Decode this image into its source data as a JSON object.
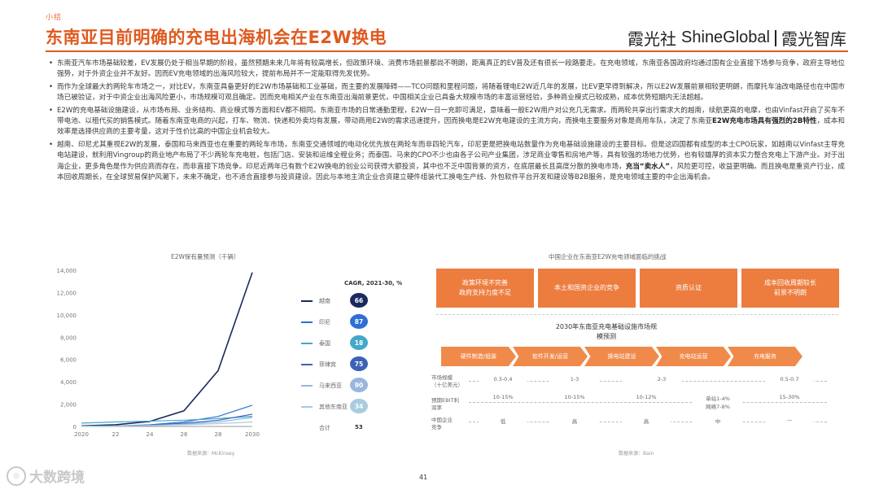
{
  "header": {
    "tag": "小结",
    "title": "东南亚目前明确的充电出海机会在E2W换电",
    "logo_cn": "霞光社",
    "logo_en": "ShineGlobal",
    "logo_right": "霞光智库"
  },
  "bullets": [
    "东南亚汽车市场基础较差，EV发展仍处于相当早期的阶段，虽然预期未来几年将有较高增长，但政策环境、消费市场前景都尚不明朗，距离真正的EV普及还有很长一段路要走。在充电领域，东南亚各国政府均通过国有企业直接下场参与竞争，政府主导地位强势，对于外资企业并不友好。因而EV充电领域的出海风险较大，提前布局并不一定能取得先发优势。",
    "而作为全球最大的两轮车市场之一，对比EV，东南亚具备更好的E2W市场基础和工业基础，而主要的发展障碍——TCO问题和里程问题，将随着锂电E2W近几年的发展，比EV更早得到解决，所以E2W发展前景相较更明朗，而摩托车油改电路径也在中国市场已被验证，对于中资企业出海风险更小，市场规模可观且确定。因而充电相关产业在东南亚出海前景更优，中国相关企业已具备大规模市场的丰富运营经验，多种商业模式已较成熟，成本优势短期内无法超越。",
    "E2W的充电基础设施建设，从市场布局、业务结构、商业模式等方面和EV都不相同。东南亚市场的日常通勤里程，E2W一日一充即可满足，意味着一般E2W用户对公充几无需求。而两轮共享出行需求大的越南，续航更高的电摩，也由Vinfast开启了买车不带电池、以租代买的销售模式。随着东南亚电商的兴起，打车、物流、快递和外卖均有发展，带动商用E2W的需求迅速提升，因而换电是E2W充电建设的主流方向，而换电主要服务对象是商用车队，决定了东南亚E2W充电市场具有强烈的2B特性，成本和效率是选择供应商的主要考量，这对于性价比高的中国企业机会较大。",
    "越南、印尼尤其重视E2W的发展，泰国和马来西亚也在重要的两轮车市场，东南亚交通领域的电动化优先放在两轮车而非四轮汽车，印尼更是把换电站数量作为充电基础设施建设的主要目标。但是这四国都有成型的本土CPO玩家，如越南以Vinfast主导充电站建设，就利用Vingroup的商业地产布局了不少两轮车充电桩，包括门店、安装和运维全程业务；而泰国、马来的CPO不少也由各子公司产业集团，涉足商业零售和房地产等，具有较强的场地力优势，也有较雄厚的资本实力整合充电上下游产业。对于出海企业，更多角色是作为供应商而存在，而非直接下场竞争。印尼近两年已有数个E2W换电的创业公司获得大额投资，其中也不乏中国背景的资方，在底层最长且高度分散的换电市场，充当“卖水人”，风险更可控，收益更明确。而且换电是重资产行业，成本回收周期长，在全球贸易保护风潮下，未来不确定，也不适合直接参与投资建设。因此与本地主流企业合资建立硬件组装代工换电生产线、外包软件平台开发和建设等B2B服务，是充电领域主要的中企出海机会。"
  ],
  "bold_phrases": [
    "E2W充电市场具有强烈的2B特性",
    "充当“卖水人”"
  ],
  "left_chart": {
    "title": "E2W保有量预测（千辆）",
    "cagr_label": "CAGR, 2021-30, %",
    "total_label": "合计",
    "total_value": "53",
    "source": "数据来源：McKinsey"
  },
  "chart_data": {
    "type": "line",
    "title": "E2W保有量预测（千辆）",
    "x": [
      2020,
      2022,
      2024,
      2026,
      2028,
      2030
    ],
    "xticks": [
      "2020",
      "22",
      "24",
      "26",
      "28",
      "2030"
    ],
    "ylim": [
      0,
      14000
    ],
    "yticks": [
      "0",
      "2,000",
      "4,000",
      "6,000",
      "8,000",
      "10,000",
      "12,000",
      "14,000"
    ],
    "legend_position": "right",
    "series": [
      {
        "name": "越南",
        "cagr": "66",
        "color": "#1b2a5e",
        "values": [
          50,
          150,
          450,
          1400,
          5000,
          13800
        ]
      },
      {
        "name": "印尼",
        "cagr": "87",
        "color": "#2e6fd6",
        "values": [
          20,
          50,
          150,
          400,
          900,
          1900
        ]
      },
      {
        "name": "泰国",
        "cagr": "18",
        "color": "#44a8c8",
        "values": [
          300,
          400,
          480,
          560,
          700,
          900
        ]
      },
      {
        "name": "菲律宾",
        "cagr": "75",
        "color": "#3c62b8",
        "values": [
          10,
          40,
          120,
          280,
          550,
          1100
        ]
      },
      {
        "name": "马来西亚",
        "cagr": "90",
        "color": "#9ab6dc",
        "values": [
          10,
          30,
          80,
          200,
          400,
          800
        ]
      },
      {
        "name": "其他东南亚",
        "cagr": "34",
        "color": "#a8cce0",
        "values": [
          20,
          40,
          80,
          150,
          250,
          400
        ]
      }
    ]
  },
  "right_diag": {
    "title": "中国企业在东南亚E2W充电领域面临的挑战",
    "challenges": [
      "政策环境不完善\n政府支持力度不足",
      "本土和国资企业的竞争",
      "资质认证",
      "成本回收周期较长\n前景不明朗"
    ],
    "subtitle": "2030年东南亚充电基础设施市场规模预测",
    "stages": [
      "硬件制造/组装",
      "软件开发/运营",
      "换电站建设",
      "充电站运营",
      "充电服务"
    ],
    "rows": [
      {
        "label": "市场规模\n（十亿美元）",
        "cells": [
          "0.3-0.4",
          "1-3",
          "2-3",
          "",
          "0.5-0.7"
        ]
      },
      {
        "label": "预期EBIT利润率",
        "cells": [
          "10-15%",
          "10-15%",
          "10-12%",
          "单站1-4%\n网络7-8%",
          "15-30%"
        ]
      },
      {
        "label": "中国企业\n竞争",
        "cells": [
          "低",
          "高",
          "高",
          "中",
          "—"
        ]
      }
    ],
    "source": "数据来源：Bain"
  },
  "page_number": "41",
  "watermark": "大数跨境"
}
